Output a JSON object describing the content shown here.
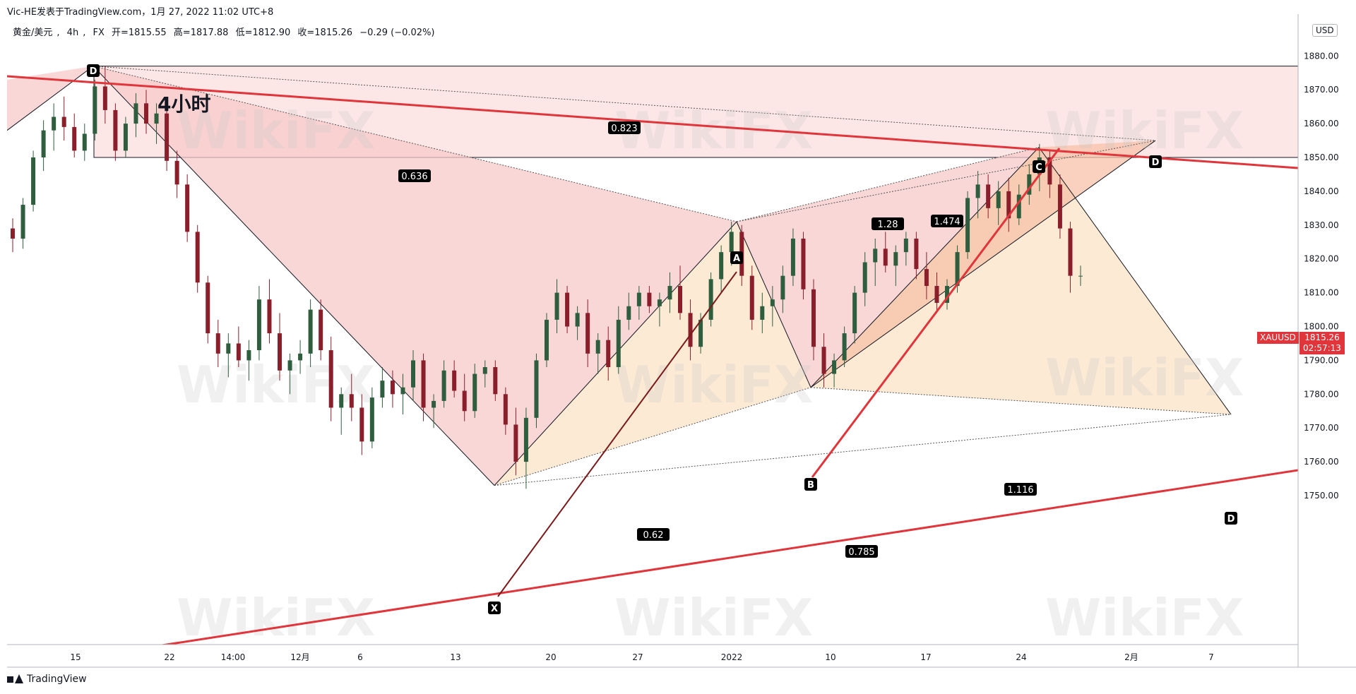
{
  "header": {
    "publisher": "Vic-HE发表于TradingView.com，1月 27, 2022 11:02 UTC+8",
    "symbol": "黄金/美元",
    "interval": "4h",
    "exchange": "FX",
    "open": "开=1815.55",
    "high": "高=1817.88",
    "low": "低=1812.90",
    "close": "收=1815.26",
    "change": "−0.29 (−0.02%)"
  },
  "timeframe_label": "4小时",
  "currency_button": "USD",
  "last_price": {
    "symbol": "XAUUSD",
    "price": "1815.26",
    "countdown": "02:57:13"
  },
  "footer": {
    "logo_text": "TradingView"
  },
  "watermark": {
    "text": "WikiFX"
  },
  "colors": {
    "up_candle": "#2e5e3e",
    "down_candle": "#8b1e2b",
    "trend_line": "#e0353a",
    "pattern_xab": "#f7c9c9",
    "pattern_bcd": "#fbe3c6",
    "label_bg": "#000000",
    "label_fg": "#ffffff"
  },
  "chart_data": {
    "type": "line",
    "title": "",
    "xlabel": "",
    "ylabel": "",
    "ylim": [
      1740,
      1885
    ],
    "yticks": [
      1750,
      1760,
      1770,
      1780,
      1790,
      1800,
      1810,
      1820,
      1830,
      1840,
      1850,
      1860,
      1870,
      1880
    ],
    "xticks": [
      "15",
      "22",
      "14:00",
      "12月",
      "6",
      "13",
      "20",
      "27",
      "2022",
      "10",
      "17",
      "24",
      "2月",
      "7"
    ],
    "grid": false,
    "xy_pattern": {
      "type": "harmonic",
      "points": [
        {
          "name": "D",
          "x": "11月16",
          "y": 1877
        },
        {
          "name": "X",
          "x": "12月15",
          "y": 1753
        },
        {
          "name": "A",
          "x": "1月4",
          "y": 1831
        },
        {
          "name": "B",
          "x": "1月10",
          "y": 1782
        },
        {
          "name": "C",
          "x": "1月25",
          "y": 1853
        },
        {
          "name": "D",
          "x": "2月2",
          "y": 1855
        },
        {
          "name": "D",
          "x": "2月8",
          "y": 1774
        }
      ],
      "ratios": [
        "0.823",
        "0.636",
        "1.28",
        "1.474",
        "0.62",
        "1.116",
        "0.785"
      ]
    },
    "series": [
      {
        "values": [
          [
            1829,
            1832,
            1822,
            1826
          ],
          [
            1826,
            1838,
            1823,
            1836
          ],
          [
            1836,
            1852,
            1834,
            1850
          ],
          [
            1850,
            1861,
            1846,
            1858
          ],
          [
            1858,
            1866,
            1852,
            1862
          ],
          [
            1862,
            1868,
            1855,
            1859
          ],
          [
            1859,
            1863,
            1850,
            1852
          ],
          [
            1852,
            1860,
            1849,
            1857
          ],
          [
            1857,
            1873,
            1855,
            1871
          ],
          [
            1871,
            1877,
            1860,
            1864
          ],
          [
            1864,
            1866,
            1849,
            1852
          ],
          [
            1852,
            1862,
            1850,
            1860
          ],
          [
            1860,
            1869,
            1856,
            1866
          ],
          [
            1866,
            1870,
            1857,
            1860
          ],
          [
            1860,
            1866,
            1854,
            1863
          ],
          [
            1863,
            1866,
            1846,
            1849
          ],
          [
            1849,
            1852,
            1838,
            1842
          ],
          [
            1842,
            1845,
            1825,
            1828
          ],
          [
            1828,
            1830,
            1810,
            1813
          ],
          [
            1813,
            1815,
            1795,
            1798
          ],
          [
            1798,
            1802,
            1788,
            1792
          ],
          [
            1792,
            1798,
            1785,
            1795
          ],
          [
            1795,
            1800,
            1788,
            1790
          ],
          [
            1790,
            1796,
            1784,
            1793
          ],
          [
            1793,
            1812,
            1790,
            1808
          ],
          [
            1808,
            1814,
            1795,
            1798
          ],
          [
            1798,
            1804,
            1784,
            1787
          ],
          [
            1787,
            1792,
            1780,
            1790
          ],
          [
            1790,
            1796,
            1786,
            1792
          ],
          [
            1792,
            1808,
            1788,
            1805
          ],
          [
            1805,
            1808,
            1790,
            1793
          ],
          [
            1793,
            1797,
            1772,
            1776
          ],
          [
            1776,
            1782,
            1768,
            1780
          ],
          [
            1780,
            1786,
            1772,
            1776
          ],
          [
            1776,
            1780,
            1762,
            1766
          ],
          [
            1766,
            1782,
            1764,
            1779
          ],
          [
            1779,
            1788,
            1776,
            1784
          ],
          [
            1784,
            1787,
            1776,
            1780
          ],
          [
            1780,
            1786,
            1774,
            1782
          ],
          [
            1782,
            1793,
            1778,
            1790
          ],
          [
            1790,
            1792,
            1772,
            1776
          ],
          [
            1776,
            1780,
            1770,
            1778
          ],
          [
            1778,
            1790,
            1776,
            1787
          ],
          [
            1787,
            1790,
            1779,
            1781
          ],
          [
            1781,
            1786,
            1772,
            1775
          ],
          [
            1775,
            1789,
            1773,
            1786
          ],
          [
            1786,
            1790,
            1782,
            1788
          ],
          [
            1788,
            1790,
            1778,
            1780
          ],
          [
            1780,
            1782,
            1768,
            1771
          ],
          [
            1771,
            1776,
            1756,
            1760
          ],
          [
            1760,
            1776,
            1752,
            1773
          ],
          [
            1773,
            1792,
            1770,
            1790
          ],
          [
            1790,
            1804,
            1788,
            1802
          ],
          [
            1802,
            1814,
            1798,
            1810
          ],
          [
            1810,
            1812,
            1798,
            1800
          ],
          [
            1800,
            1806,
            1796,
            1804
          ],
          [
            1804,
            1808,
            1788,
            1792
          ],
          [
            1792,
            1798,
            1786,
            1796
          ],
          [
            1796,
            1800,
            1784,
            1788
          ],
          [
            1788,
            1806,
            1786,
            1802
          ],
          [
            1802,
            1810,
            1799,
            1806
          ],
          [
            1806,
            1812,
            1802,
            1810
          ],
          [
            1810,
            1812,
            1804,
            1806
          ],
          [
            1806,
            1810,
            1800,
            1808
          ],
          [
            1808,
            1816,
            1804,
            1812
          ],
          [
            1812,
            1818,
            1802,
            1804
          ],
          [
            1804,
            1808,
            1790,
            1794
          ],
          [
            1794,
            1804,
            1792,
            1802
          ],
          [
            1802,
            1816,
            1800,
            1814
          ],
          [
            1814,
            1824,
            1810,
            1822
          ],
          [
            1822,
            1831,
            1818,
            1828
          ],
          [
            1828,
            1830,
            1812,
            1815
          ],
          [
            1815,
            1818,
            1799,
            1802
          ],
          [
            1802,
            1810,
            1798,
            1806
          ],
          [
            1806,
            1812,
            1800,
            1808
          ],
          [
            1808,
            1818,
            1804,
            1815
          ],
          [
            1815,
            1829,
            1812,
            1826
          ],
          [
            1826,
            1828,
            1808,
            1811
          ],
          [
            1811,
            1814,
            1790,
            1794
          ],
          [
            1794,
            1798,
            1782,
            1786
          ],
          [
            1786,
            1792,
            1782,
            1790
          ],
          [
            1790,
            1800,
            1788,
            1798
          ],
          [
            1798,
            1812,
            1795,
            1810
          ],
          [
            1810,
            1822,
            1806,
            1819
          ],
          [
            1819,
            1826,
            1812,
            1823
          ],
          [
            1823,
            1828,
            1816,
            1818
          ],
          [
            1818,
            1824,
            1812,
            1822
          ],
          [
            1822,
            1828,
            1818,
            1826
          ],
          [
            1826,
            1828,
            1814,
            1817
          ],
          [
            1817,
            1822,
            1808,
            1812
          ],
          [
            1812,
            1816,
            1804,
            1807
          ],
          [
            1807,
            1814,
            1805,
            1812
          ],
          [
            1812,
            1824,
            1810,
            1822
          ],
          [
            1822,
            1840,
            1820,
            1838
          ],
          [
            1838,
            1846,
            1832,
            1842
          ],
          [
            1842,
            1845,
            1832,
            1835
          ],
          [
            1835,
            1843,
            1830,
            1840
          ],
          [
            1840,
            1844,
            1828,
            1832
          ],
          [
            1832,
            1842,
            1830,
            1839
          ],
          [
            1839,
            1848,
            1836,
            1845
          ],
          [
            1845,
            1854,
            1840,
            1850
          ],
          [
            1850,
            1852,
            1838,
            1842
          ],
          [
            1842,
            1845,
            1826,
            1829
          ],
          [
            1829,
            1831,
            1810,
            1815
          ],
          [
            1815,
            1818,
            1812,
            1815
          ]
        ]
      }
    ]
  }
}
